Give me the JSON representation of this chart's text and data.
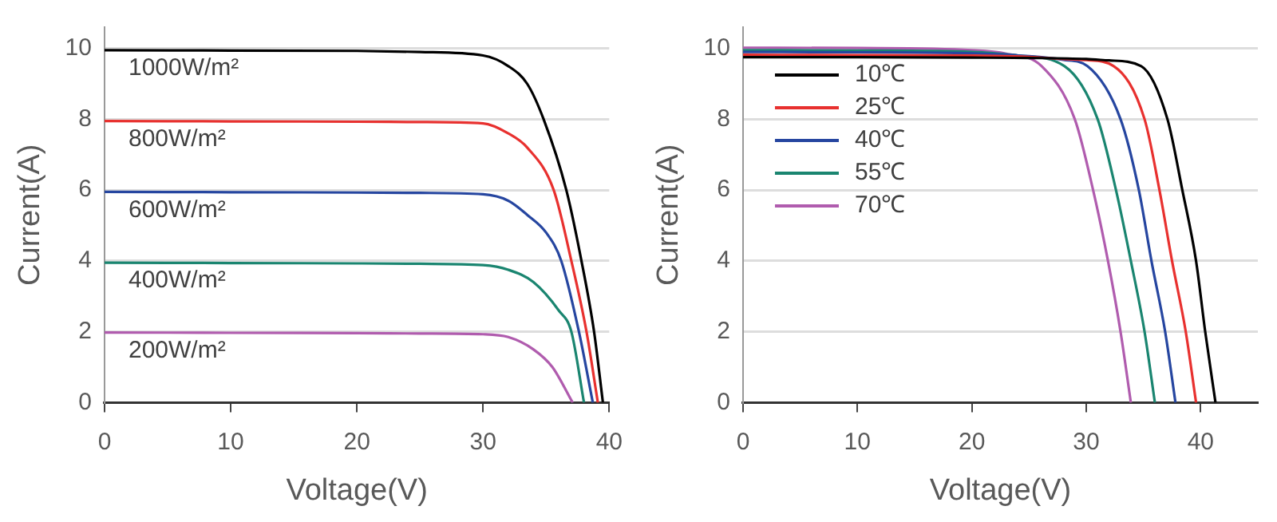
{
  "chart_data": [
    {
      "type": "line",
      "xlabel": "Voltage(V)",
      "ylabel": "Current(A)",
      "xlim": [
        0,
        40
      ],
      "xticks": [
        0,
        10,
        20,
        30,
        40
      ],
      "ylim": [
        0,
        10.6
      ],
      "yticks": [
        0,
        2,
        4,
        6,
        8,
        10
      ],
      "grid": "y",
      "legend": false,
      "marker": "none",
      "line_style": "solid",
      "series": [
        {
          "name": "1000W/m²",
          "color": "#000000",
          "x": [
            0,
            10,
            20,
            25,
            30,
            32,
            33.5,
            34.8,
            36.6,
            37.8,
            38.8,
            39.5
          ],
          "values": [
            9.95,
            9.94,
            9.93,
            9.9,
            9.8,
            9.5,
            9,
            8,
            6,
            4,
            2,
            0
          ]
        },
        {
          "name": "800W/m²",
          "color": "#e8312f",
          "x": [
            0,
            10,
            20,
            25,
            30,
            32,
            33.5,
            35.6,
            37,
            38.2,
            39.1
          ],
          "values": [
            7.95,
            7.94,
            7.93,
            7.92,
            7.88,
            7.6,
            7.2,
            6,
            4,
            2,
            0
          ]
        },
        {
          "name": "600W/m²",
          "color": "#2646a0",
          "x": [
            0,
            10,
            20,
            25,
            30,
            32,
            33.5,
            35,
            36.2,
            37.6,
            38.7
          ],
          "values": [
            5.95,
            5.94,
            5.93,
            5.92,
            5.88,
            5.7,
            5.3,
            4.8,
            4,
            2,
            0
          ]
        },
        {
          "name": "400W/m²",
          "color": "#1a8570",
          "x": [
            0,
            10,
            20,
            25,
            30,
            32,
            34,
            36,
            37,
            38
          ],
          "values": [
            3.95,
            3.94,
            3.93,
            3.92,
            3.88,
            3.75,
            3.4,
            2.6,
            2,
            0
          ]
        },
        {
          "name": "200W/m²",
          "color": "#b05cae",
          "x": [
            0,
            10,
            20,
            25,
            30,
            32,
            34,
            35.5,
            37.1
          ],
          "values": [
            1.98,
            1.97,
            1.96,
            1.95,
            1.93,
            1.85,
            1.5,
            1,
            0
          ]
        }
      ]
    },
    {
      "type": "line",
      "xlabel": "Voltage(V)",
      "ylabel": "Current(A)",
      "xlim": [
        0,
        45
      ],
      "xticks": [
        0,
        10,
        20,
        30,
        40
      ],
      "ylim": [
        0,
        10.6
      ],
      "yticks": [
        0,
        2,
        4,
        6,
        8,
        10
      ],
      "grid": "y",
      "legend": "top left",
      "marker": "none",
      "line_style": "solid",
      "series": [
        {
          "name": "10℃",
          "color": "#000000",
          "x": [
            0,
            10,
            20,
            25,
            30,
            32,
            34.8,
            37.1,
            38.4,
            39.6,
            40.4,
            41.3
          ],
          "values": [
            9.75,
            9.75,
            9.74,
            9.73,
            9.7,
            9.66,
            9.5,
            8,
            6,
            4,
            2,
            0
          ]
        },
        {
          "name": "25℃",
          "color": "#e8312f",
          "x": [
            0,
            10,
            20,
            25,
            28,
            30,
            32.4,
            35.1,
            36.4,
            37.5,
            38.7,
            39.6
          ],
          "values": [
            9.82,
            9.81,
            9.8,
            9.76,
            9.7,
            9.67,
            9.5,
            8,
            6,
            4,
            2,
            0
          ]
        },
        {
          "name": "40℃",
          "color": "#2646a0",
          "x": [
            0,
            10,
            20,
            25,
            28,
            30.1,
            33,
            34.6,
            35.7,
            36.9,
            37.8
          ],
          "values": [
            9.9,
            9.89,
            9.86,
            9.78,
            9.68,
            9.5,
            8,
            6,
            4,
            2,
            0
          ]
        },
        {
          "name": "55℃",
          "color": "#1a8570",
          "x": [
            0,
            10,
            20,
            24,
            28.1,
            31,
            32.6,
            33.9,
            35.1,
            36
          ],
          "values": [
            9.95,
            9.94,
            9.9,
            9.8,
            9.5,
            8,
            6,
            4,
            2,
            0
          ]
        },
        {
          "name": "70℃",
          "color": "#b05cae",
          "x": [
            0,
            10,
            20,
            23,
            26.1,
            29,
            30.6,
            31.9,
            33,
            33.9
          ],
          "values": [
            10.02,
            10.01,
            9.95,
            9.85,
            9.5,
            8,
            6,
            4,
            2,
            0
          ]
        }
      ]
    }
  ]
}
